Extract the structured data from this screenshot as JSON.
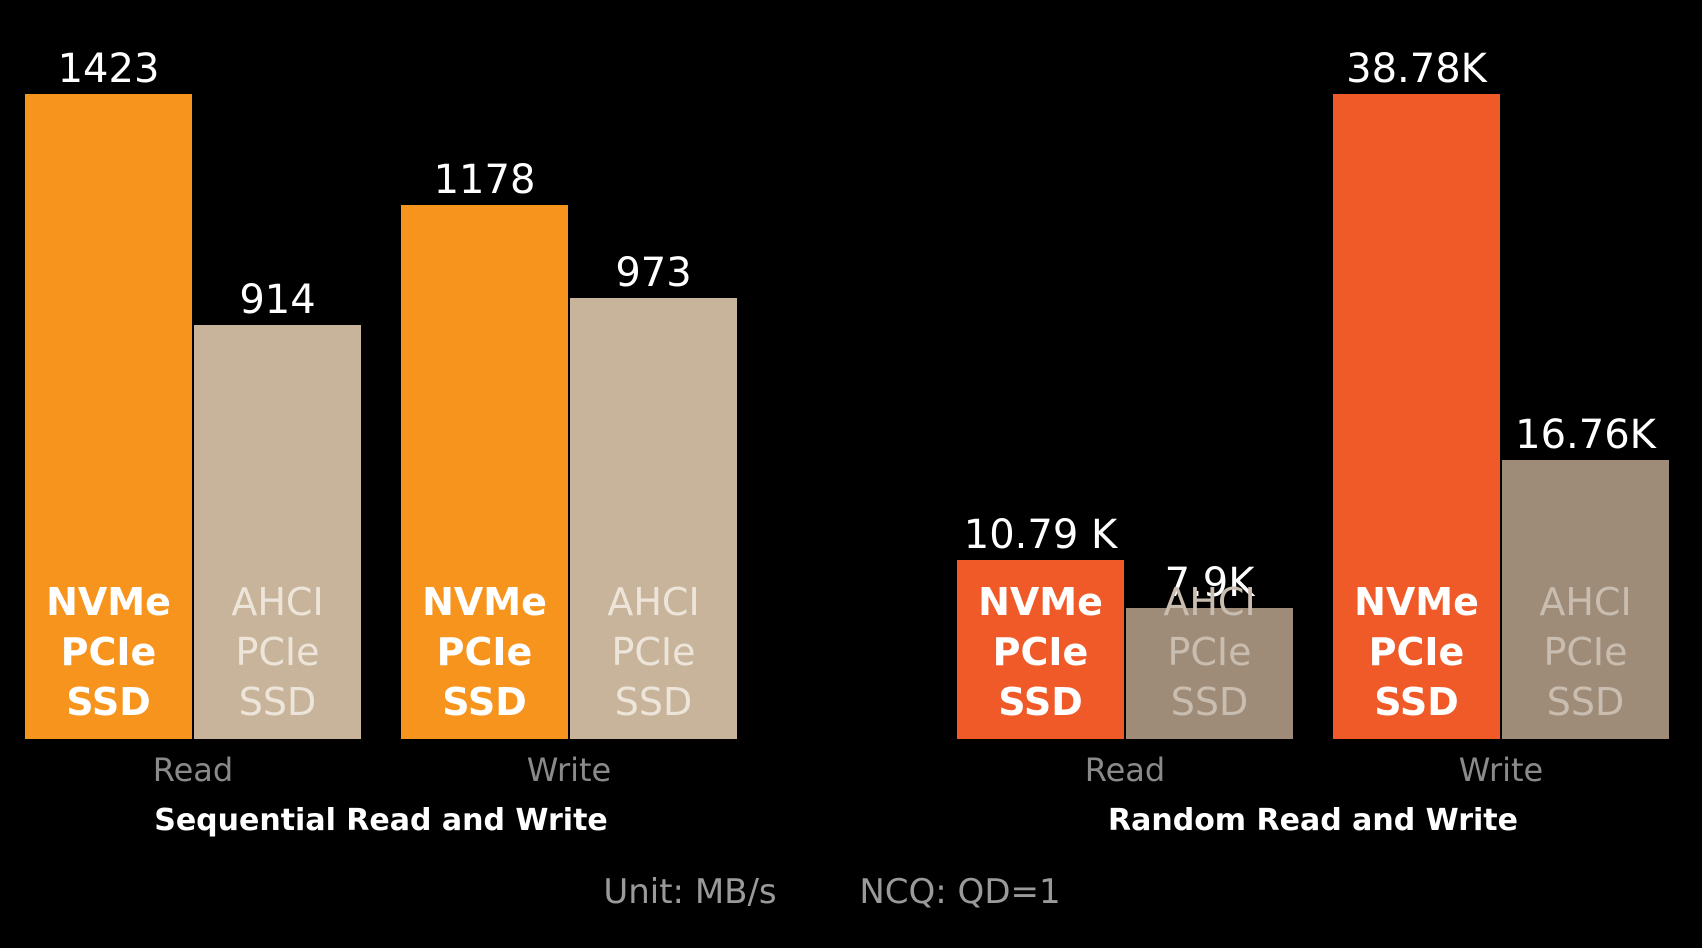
{
  "chart_data": [
    {
      "type": "bar",
      "title": "Sequential Read and Write",
      "categories": [
        "Read",
        "Write"
      ],
      "series": [
        {
          "name": "NVMe PCIe SSD",
          "label_lines": [
            "NVMe",
            "PCIe",
            "SSD"
          ],
          "values": [
            1423,
            1178
          ],
          "value_labels": [
            "1423",
            "1178"
          ],
          "color": "#F7941D",
          "text_color": "#ffffff"
        },
        {
          "name": "AHCI PCIe SSD",
          "label_lines": [
            "AHCI",
            "PCIe",
            "SSD"
          ],
          "values": [
            914,
            973
          ],
          "value_labels": [
            "914",
            "973"
          ],
          "color": "#C8B49A",
          "text_color": "#ede5d9"
        }
      ],
      "ylim": [
        0,
        1423
      ]
    },
    {
      "type": "bar",
      "title": "Random Read and Write",
      "categories": [
        "Read",
        "Write"
      ],
      "series": [
        {
          "name": "NVMe PCIe SSD",
          "label_lines": [
            "NVMe",
            "PCIe",
            "SSD"
          ],
          "values": [
            10790,
            38780
          ],
          "value_labels": [
            "10.79 K",
            "38.78K"
          ],
          "color": "#EF5A28",
          "text_color": "#ffffff"
        },
        {
          "name": "AHCI PCIe SSD",
          "label_lines": [
            "AHCI",
            "PCIe",
            "SSD"
          ],
          "values": [
            7900,
            16760
          ],
          "value_labels": [
            "7.9K",
            "16.76K"
          ],
          "color": "#9E8B78",
          "text_color": "#c9bdb0"
        }
      ],
      "ylim": [
        0,
        38780
      ]
    }
  ],
  "footer": {
    "unit": "Unit: MB/s",
    "ncq": "NCQ: QD=1"
  }
}
